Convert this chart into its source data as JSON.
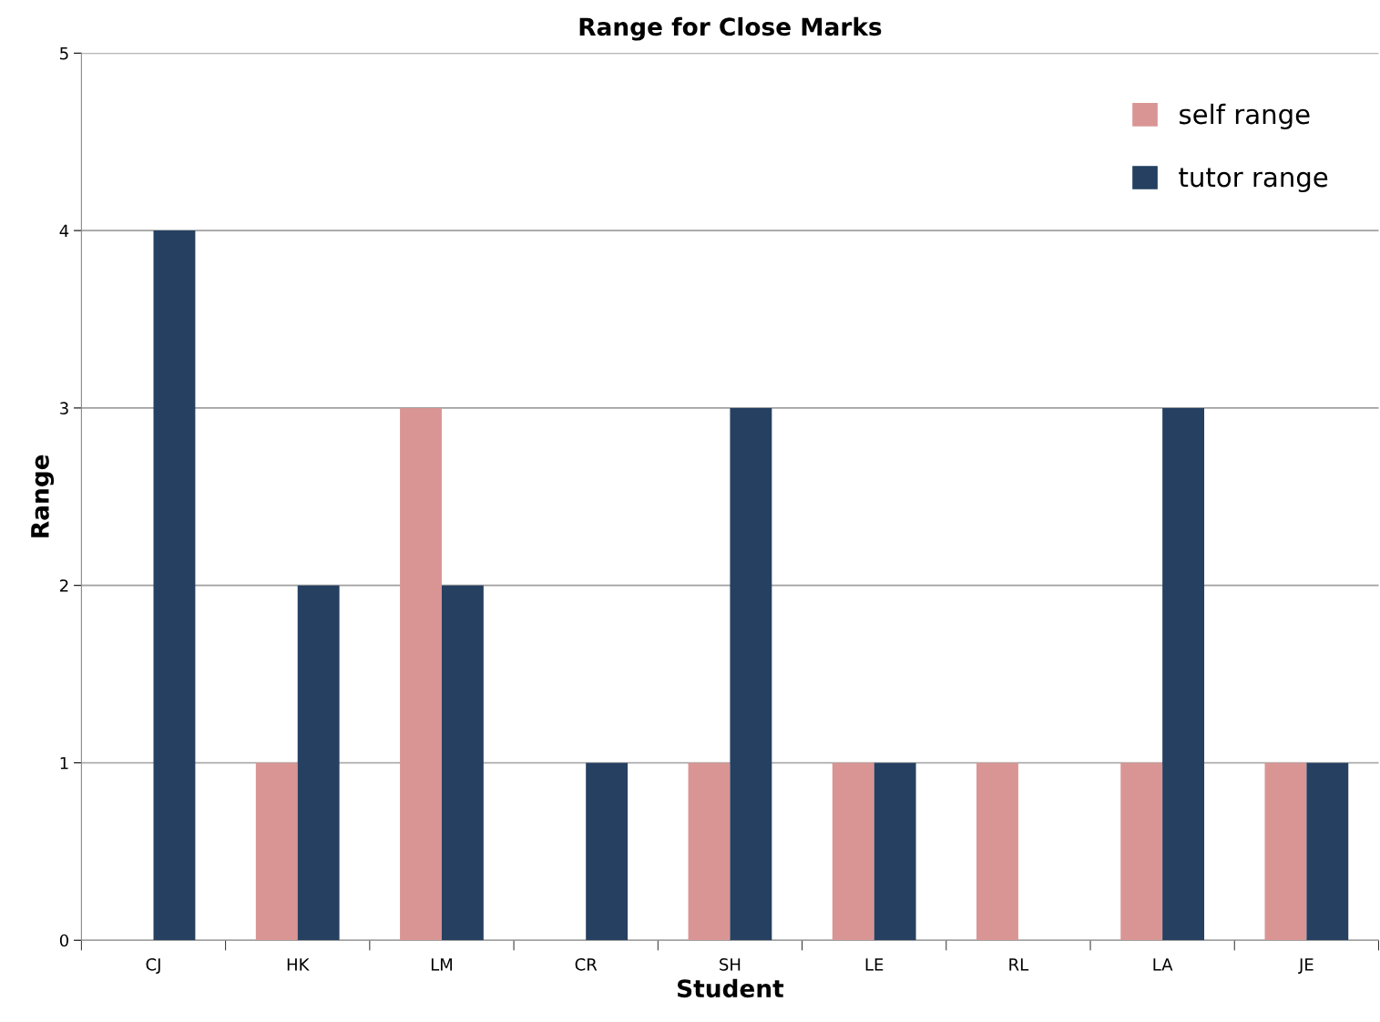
{
  "chart_data": {
    "type": "bar",
    "title": "Range for Close Marks",
    "xlabel": "Student",
    "ylabel": "Range",
    "categories": [
      "CJ",
      "HK",
      "LM",
      "CR",
      "SH",
      "LE",
      "RL",
      "LA",
      "JE"
    ],
    "series": [
      {
        "name": "self range",
        "color": "#d99594",
        "values": [
          0,
          1,
          3,
          0,
          1,
          1,
          1,
          1,
          1
        ]
      },
      {
        "name": "tutor range",
        "color": "#254061",
        "values": [
          4,
          2,
          2,
          1,
          3,
          1,
          0,
          3,
          1
        ]
      }
    ],
    "ylim": [
      0,
      5
    ],
    "yticks": [
      0,
      1,
      2,
      3,
      4,
      5
    ],
    "grid": "y",
    "legend": "top right"
  }
}
